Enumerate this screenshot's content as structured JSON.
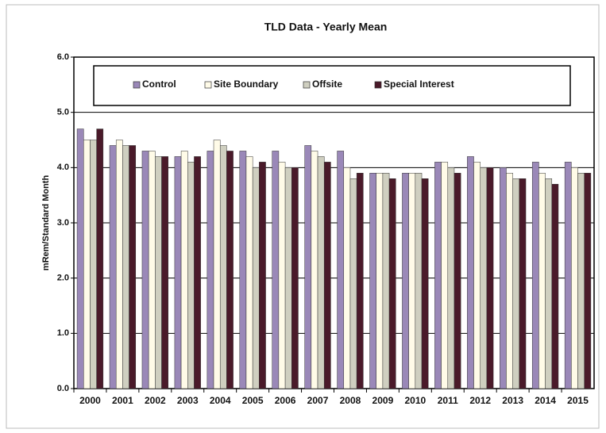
{
  "chart_data": {
    "type": "bar",
    "title": "TLD Data - Yearly Mean",
    "y_label": "mRem/Standard Month",
    "categories": [
      "2000",
      "2001",
      "2002",
      "2003",
      "2004",
      "2005",
      "2006",
      "2007",
      "2008",
      "2009",
      "2010",
      "2011",
      "2012",
      "2013",
      "2014",
      "2015"
    ],
    "series": [
      {
        "name": "Control",
        "color": "#9a88b8",
        "values": [
          4.7,
          4.4,
          4.3,
          4.2,
          4.3,
          4.3,
          4.3,
          4.4,
          4.3,
          3.9,
          3.9,
          4.1,
          4.2,
          4.0,
          4.1,
          4.1
        ]
      },
      {
        "name": "Site Boundary",
        "color": "#fffbe8",
        "values": [
          4.5,
          4.5,
          4.3,
          4.3,
          4.5,
          4.2,
          4.1,
          4.3,
          4.0,
          3.9,
          3.9,
          4.1,
          4.1,
          3.9,
          3.9,
          4.0
        ]
      },
      {
        "name": "Offsite",
        "color": "#cfcfc0",
        "values": [
          4.5,
          4.4,
          4.2,
          4.1,
          4.4,
          4.0,
          4.0,
          4.2,
          3.8,
          3.9,
          3.9,
          4.0,
          4.0,
          3.8,
          3.8,
          3.9
        ]
      },
      {
        "name": "Special Interest",
        "color": "#4a1a2a",
        "values": [
          4.7,
          4.4,
          4.2,
          4.2,
          4.3,
          4.1,
          4.0,
          4.1,
          3.9,
          3.8,
          3.8,
          3.9,
          4.0,
          3.8,
          3.7,
          3.9
        ]
      }
    ],
    "ylim": [
      0,
      6
    ],
    "yticks": [
      {
        "value": 0,
        "label": "0.0"
      },
      {
        "value": 1,
        "label": "1.0"
      },
      {
        "value": 2,
        "label": "2.0"
      },
      {
        "value": 3,
        "label": "3.0"
      },
      {
        "value": 4,
        "label": "4.0"
      },
      {
        "value": 5,
        "label": "5.0"
      },
      {
        "value": 6,
        "label": "6.0"
      }
    ],
    "grid": true,
    "legend": "top"
  }
}
